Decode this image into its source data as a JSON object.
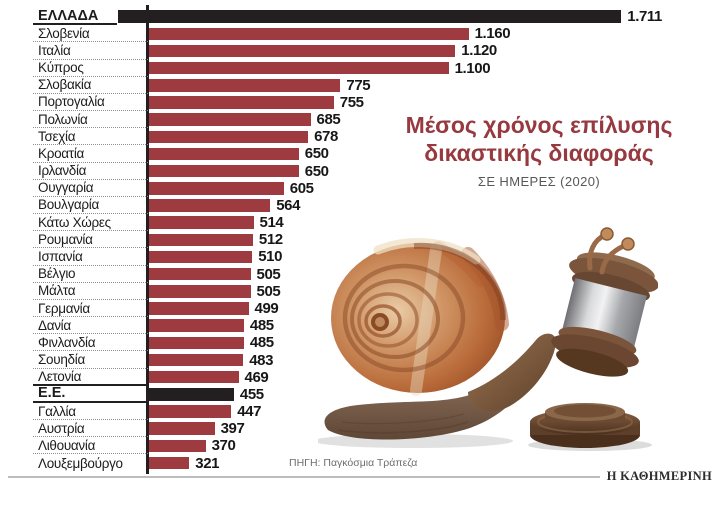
{
  "header": {
    "title": "Μέσος χρόνος επίλυσης δικαστικής διαφοράς",
    "subtitle": "ΣΕ ΗΜΕΡΕΣ (2020)"
  },
  "source": {
    "label": "ΠΗΓΗ: Παγκόσμια Τράπεζα"
  },
  "brand": {
    "name": "Η ΚΑΘΗΜΕΡΙΝΗ"
  },
  "colors": {
    "bar_red": "#9e3b40",
    "bar_black": "#231f20",
    "title_red": "#963a40",
    "subtitle_gray": "#57585a",
    "axis_black": "#231f20",
    "separator_gray": "#8f8f8f",
    "footer_rule_gray": "#bdbdbd"
  },
  "illustration": {
    "name": "snail-gavel-illustration"
  },
  "chart_data": {
    "type": "bar",
    "orientation": "horizontal",
    "title": "Μέσος χρόνος επίλυσης δικαστικής διαφοράς",
    "subtitle": "ΣΕ ΗΜΕΡΕΣ (2020)",
    "source": "ΠΗΓΗ: Παγκόσμια Τράπεζα",
    "unit": "days",
    "grid": false,
    "legend": false,
    "xlim": [
      200,
      1711
    ],
    "rows": [
      {
        "label": "ΕΛΛΑΔΑ",
        "value": 1711,
        "display": "1.711",
        "emphasis": true
      },
      {
        "label": "Σλοβενία",
        "value": 1160,
        "display": "1.160",
        "emphasis": false
      },
      {
        "label": "Ιταλία",
        "value": 1120,
        "display": "1.120",
        "emphasis": false
      },
      {
        "label": "Κύπρος",
        "value": 1100,
        "display": "1.100",
        "emphasis": false
      },
      {
        "label": "Σλοβακία",
        "value": 775,
        "display": "775",
        "emphasis": false
      },
      {
        "label": "Πορτογαλία",
        "value": 755,
        "display": "755",
        "emphasis": false
      },
      {
        "label": "Πολωνία",
        "value": 685,
        "display": "685",
        "emphasis": false
      },
      {
        "label": "Τσεχία",
        "value": 678,
        "display": "678",
        "emphasis": false
      },
      {
        "label": "Κροατία",
        "value": 650,
        "display": "650",
        "emphasis": false
      },
      {
        "label": "Ιρλανδία",
        "value": 650,
        "display": "650",
        "emphasis": false
      },
      {
        "label": "Ουγγαρία",
        "value": 605,
        "display": "605",
        "emphasis": false
      },
      {
        "label": "Βουλγαρία",
        "value": 564,
        "display": "564",
        "emphasis": false
      },
      {
        "label": "Κάτω Χώρες",
        "value": 514,
        "display": "514",
        "emphasis": false
      },
      {
        "label": "Ρουμανία",
        "value": 512,
        "display": "512",
        "emphasis": false
      },
      {
        "label": "Ισπανία",
        "value": 510,
        "display": "510",
        "emphasis": false
      },
      {
        "label": "Βέλγιο",
        "value": 505,
        "display": "505",
        "emphasis": false
      },
      {
        "label": "Μάλτα",
        "value": 505,
        "display": "505",
        "emphasis": false
      },
      {
        "label": "Γερμανία",
        "value": 499,
        "display": "499",
        "emphasis": false
      },
      {
        "label": "Δανία",
        "value": 485,
        "display": "485",
        "emphasis": false
      },
      {
        "label": "Φινλανδία",
        "value": 485,
        "display": "485",
        "emphasis": false
      },
      {
        "label": "Σουηδία",
        "value": 483,
        "display": "483",
        "emphasis": false
      },
      {
        "label": "Λετονία",
        "value": 469,
        "display": "469",
        "emphasis": false
      },
      {
        "label": "Ε.Ε.",
        "value": 455,
        "display": "455",
        "emphasis": true
      },
      {
        "label": "Γαλλία",
        "value": 447,
        "display": "447",
        "emphasis": false
      },
      {
        "label": "Αυστρία",
        "value": 397,
        "display": "397",
        "emphasis": false
      },
      {
        "label": "Λιθουανία",
        "value": 370,
        "display": "370",
        "emphasis": false
      },
      {
        "label": "Λουξεμβούργο",
        "value": 321,
        "display": "321",
        "emphasis": false
      }
    ]
  }
}
